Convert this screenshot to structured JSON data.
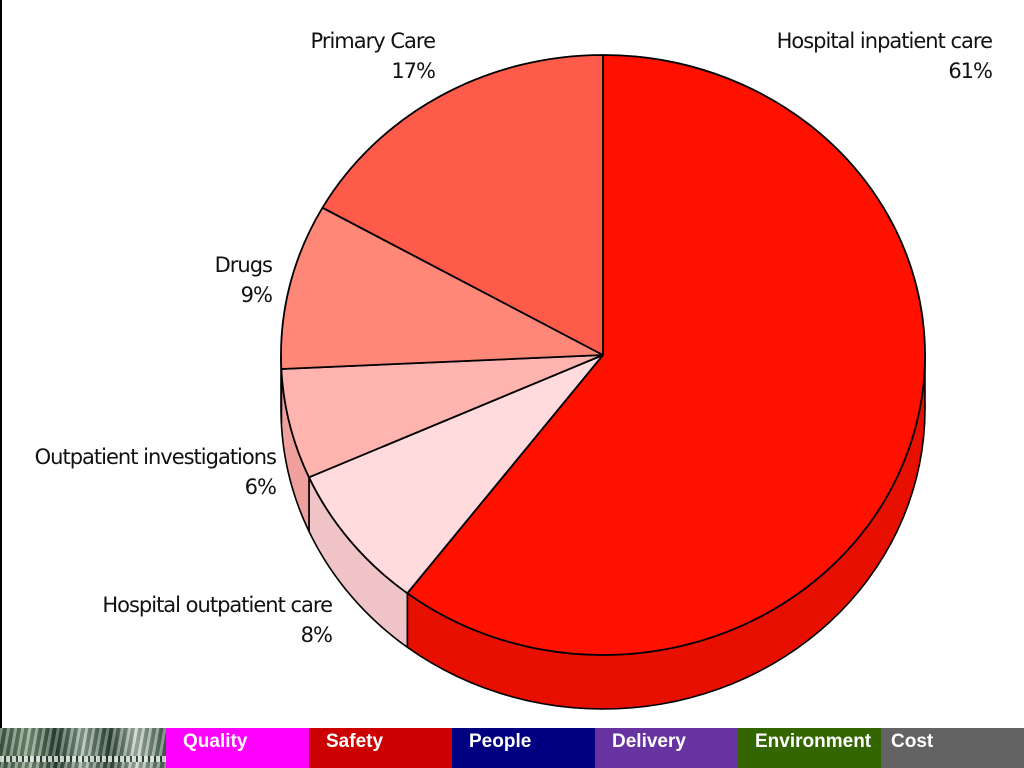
{
  "chart_data": {
    "type": "pie",
    "title": "",
    "slices": [
      {
        "label": "Hospital inpatient care",
        "value": 61,
        "display": "61%",
        "color": "#ff1100"
      },
      {
        "label": "Hospital outpatient care",
        "value": 8,
        "display": "8%",
        "color": "#ffdbdd"
      },
      {
        "label": "Outpatient investigations",
        "value": 6,
        "display": "6%",
        "color": "#ffb4b0"
      },
      {
        "label": "Drugs",
        "value": 9,
        "display": "9%",
        "color": "#ff8777"
      },
      {
        "label": "Primary Care",
        "value": 17,
        "display": "17%",
        "color": "#ff5b4b"
      }
    ],
    "side_colors": [
      "#e60f00",
      "#f0c4c6",
      "#f0a09c",
      "#ee7564",
      "#ec4b3c"
    ]
  },
  "footer": {
    "tabs": [
      {
        "label": "Quality",
        "color": "#ff00ff"
      },
      {
        "label": "Safety",
        "color": "#cc0000"
      },
      {
        "label": "People",
        "color": "#000080"
      },
      {
        "label": "Delivery",
        "color": "#6633a0"
      },
      {
        "label": "Environment",
        "color": "#336600"
      },
      {
        "label": "Cost",
        "color": "#636363"
      }
    ]
  }
}
